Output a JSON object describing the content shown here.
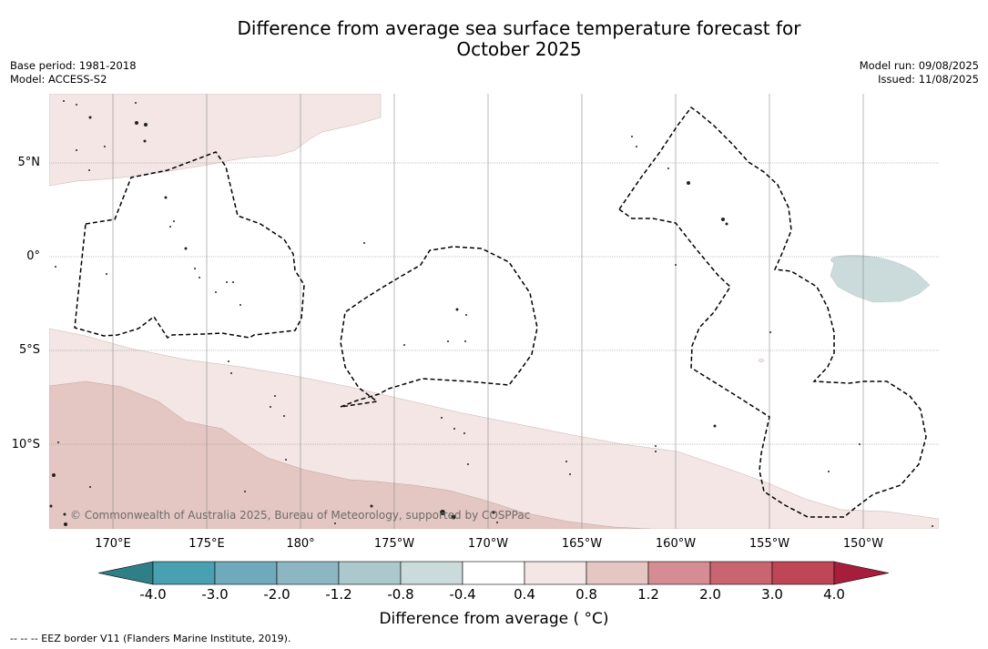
{
  "title": {
    "line1": "Difference from average sea surface temperature forecast for",
    "line2": "October 2025"
  },
  "meta": {
    "base_period": "Base period: 1981-2018",
    "model": "Model: ACCESS-S2",
    "model_run": "Model run: 09/08/2025",
    "issued": "Issued: 11/08/2025"
  },
  "map": {
    "lat_labels": [
      "5°N",
      "0°",
      "5°S",
      "10°S"
    ],
    "lon_labels": [
      "170°E",
      "175°E",
      "180°",
      "175°W",
      "170°W",
      "165°W",
      "160°W",
      "155°W",
      "150°W"
    ],
    "copyright": "© Commonwealth of Australia 2025, Bureau of Meteorology, supported by COSPPac",
    "colors": {
      "light_warm": "#f3e6e5",
      "mid_warm": "#e4c7c2",
      "light_cool": "#cbdadb",
      "eez_border": "#000000",
      "grid": "#888888"
    }
  },
  "colorbar": {
    "ticks": [
      "-4.0",
      "-3.0",
      "-2.0",
      "-1.2",
      "-0.8",
      "-0.4",
      "0.4",
      "0.8",
      "1.2",
      "2.0",
      "3.0",
      "4.0"
    ],
    "colors": [
      "#2e7f87",
      "#49a0b1",
      "#6eaabb",
      "#8cb6c1",
      "#abc9cc",
      "#cbdadb",
      "#ffffff",
      "#f3e6e5",
      "#e4c7c2",
      "#d58c92",
      "#c96570",
      "#bf4656",
      "#a61e3c"
    ],
    "label": "Difference from average ( °C)"
  },
  "footnote": "--  --  -- EEZ border V11 (Flanders Marine Institute, 2019)."
}
